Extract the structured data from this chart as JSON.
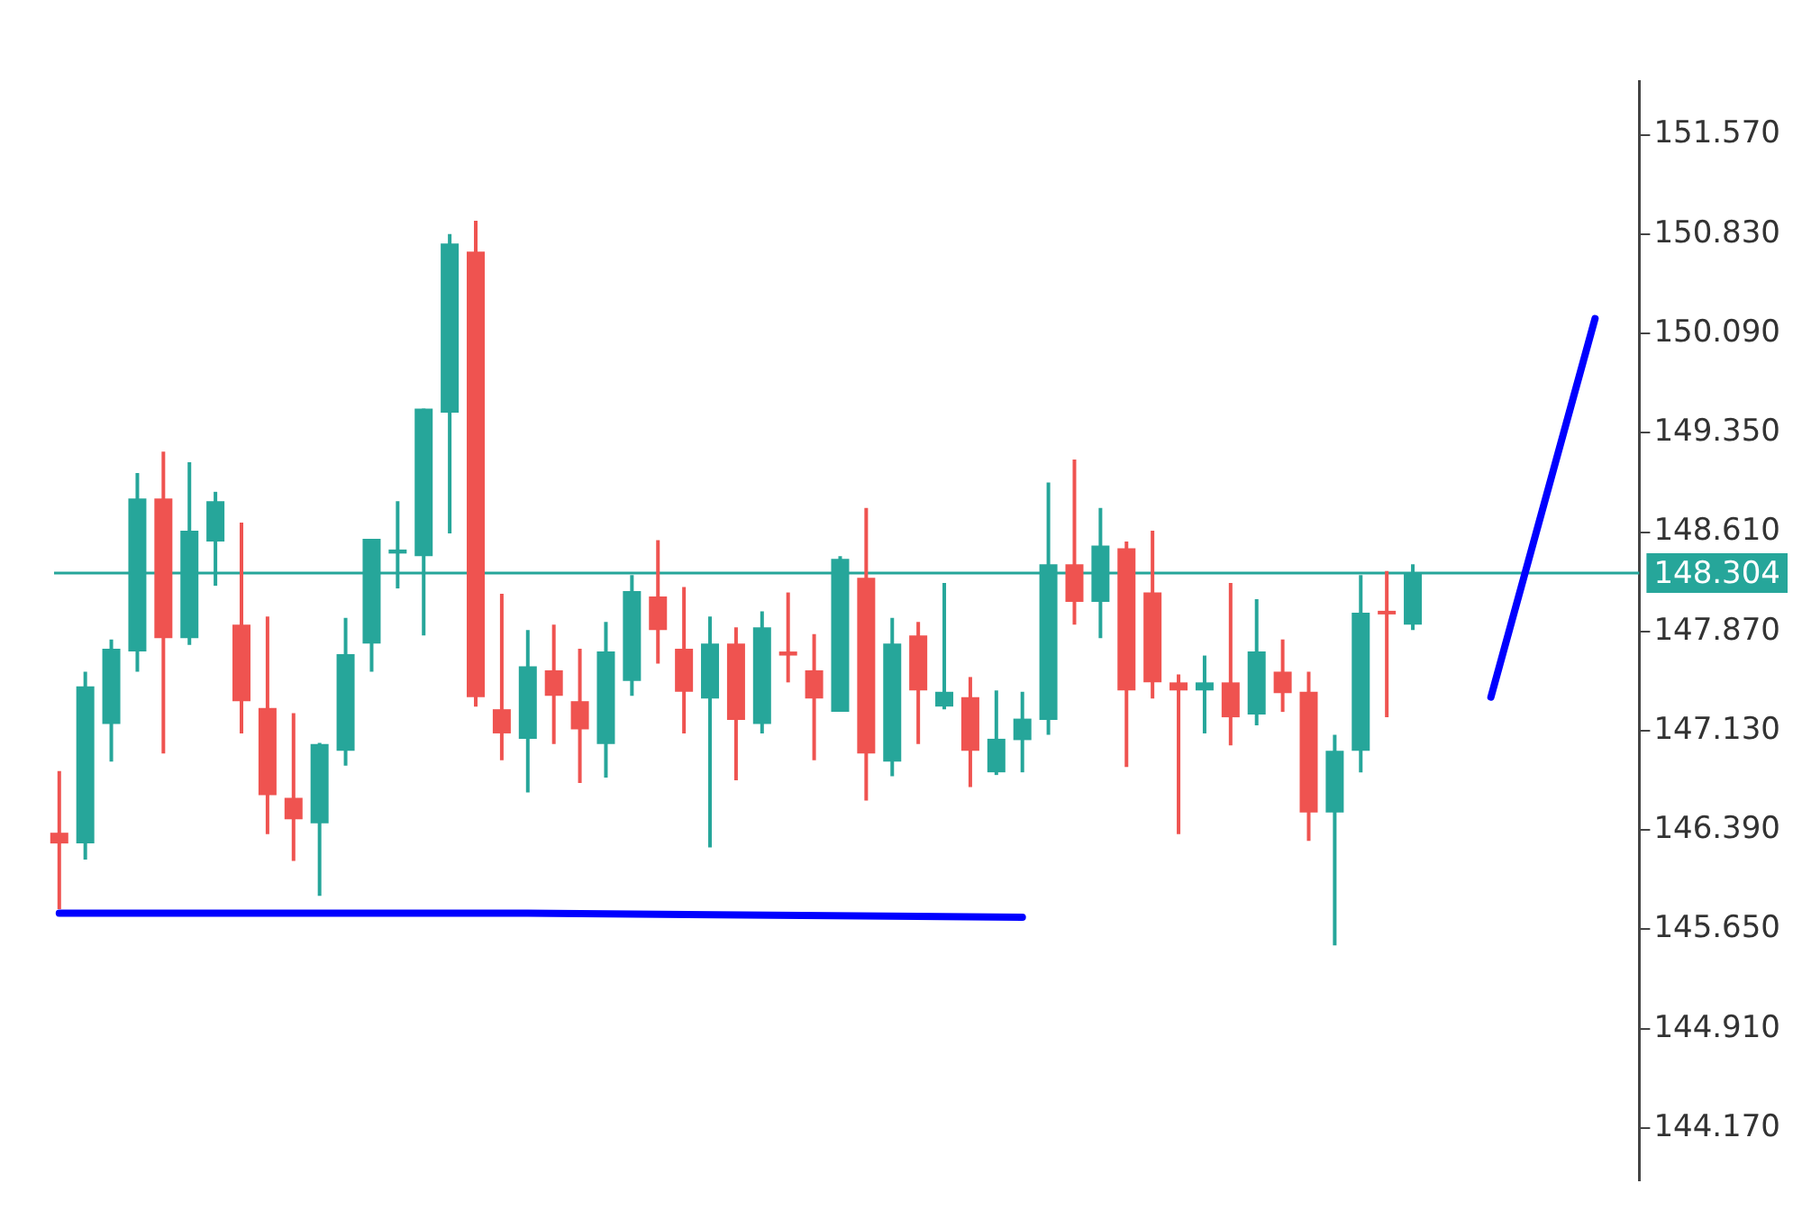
{
  "chart_data": {
    "type": "candlestick",
    "categories": [
      null,
      null,
      null,
      null,
      null,
      null,
      null,
      null,
      null,
      null,
      null,
      null,
      null,
      null,
      null,
      null,
      null,
      null,
      null,
      null,
      null,
      null,
      null,
      null,
      null,
      null,
      null,
      null,
      null,
      null,
      null,
      null,
      null,
      null,
      null,
      null,
      null,
      null,
      null,
      null,
      null,
      null,
      null,
      null,
      null,
      null,
      null,
      null,
      null,
      null,
      null,
      null,
      null,
      null,
      null,
      null,
      null,
      null,
      null,
      null
    ],
    "ohlc": [
      [
        146.37,
        146.83,
        145.8,
        146.29
      ],
      [
        146.29,
        147.57,
        146.17,
        147.46
      ],
      [
        147.18,
        147.81,
        146.9,
        147.74
      ],
      [
        147.72,
        149.05,
        147.57,
        148.86
      ],
      [
        148.86,
        149.21,
        146.96,
        147.82
      ],
      [
        147.82,
        149.13,
        147.77,
        148.62
      ],
      [
        148.54,
        148.91,
        148.21,
        148.84
      ],
      [
        147.92,
        148.68,
        147.11,
        147.35
      ],
      [
        147.3,
        147.98,
        146.36,
        146.65
      ],
      [
        146.63,
        147.26,
        146.16,
        146.47
      ],
      [
        146.44,
        147.04,
        145.9,
        147.03
      ],
      [
        146.98,
        147.97,
        146.87,
        147.7
      ],
      [
        147.78,
        148.56,
        147.57,
        148.56
      ],
      [
        148.45,
        148.84,
        148.19,
        148.48
      ],
      [
        148.43,
        149.53,
        147.84,
        149.53
      ],
      [
        149.5,
        150.83,
        148.6,
        150.76
      ],
      [
        150.7,
        150.93,
        147.31,
        147.38
      ],
      [
        147.29,
        148.15,
        146.91,
        147.11
      ],
      [
        147.07,
        147.88,
        146.67,
        147.61
      ],
      [
        147.58,
        147.92,
        147.03,
        147.39
      ],
      [
        147.35,
        147.74,
        146.74,
        147.14
      ],
      [
        147.03,
        147.94,
        146.78,
        147.72
      ],
      [
        147.5,
        148.29,
        147.39,
        148.17
      ],
      [
        148.13,
        148.55,
        147.63,
        147.88
      ],
      [
        147.74,
        148.2,
        147.11,
        147.42
      ],
      [
        147.37,
        147.98,
        146.26,
        147.78
      ],
      [
        147.78,
        147.9,
        146.76,
        147.21
      ],
      [
        147.18,
        148.02,
        147.11,
        147.9
      ],
      [
        147.72,
        148.16,
        147.49,
        147.69
      ],
      [
        147.58,
        147.85,
        146.91,
        147.37
      ],
      [
        147.27,
        148.43,
        147.27,
        148.41
      ],
      [
        148.27,
        148.79,
        146.61,
        146.96
      ],
      [
        146.9,
        147.97,
        146.79,
        147.78
      ],
      [
        147.84,
        147.94,
        147.03,
        147.43
      ],
      [
        147.31,
        148.23,
        147.29,
        147.42
      ],
      [
        147.38,
        147.53,
        146.71,
        146.98
      ],
      [
        146.82,
        147.43,
        146.8,
        147.07
      ],
      [
        147.06,
        147.42,
        146.82,
        147.22
      ],
      [
        147.21,
        148.98,
        147.1,
        148.37
      ],
      [
        148.37,
        149.15,
        147.92,
        148.09
      ],
      [
        148.09,
        148.79,
        147.82,
        148.51
      ],
      [
        148.49,
        148.54,
        146.86,
        147.43
      ],
      [
        148.16,
        148.62,
        147.37,
        147.49
      ],
      [
        147.49,
        147.55,
        146.36,
        147.43
      ],
      [
        147.43,
        147.69,
        147.11,
        147.49
      ],
      [
        147.49,
        148.23,
        147.02,
        147.23
      ],
      [
        147.25,
        148.11,
        147.17,
        147.72
      ],
      [
        147.57,
        147.81,
        147.27,
        147.41
      ],
      [
        147.42,
        147.57,
        146.31,
        146.52
      ],
      [
        146.52,
        147.1,
        145.53,
        146.98
      ],
      [
        146.98,
        148.29,
        146.82,
        148.01
      ],
      [
        148.02,
        148.32,
        147.23,
        148.0
      ],
      [
        147.92,
        148.37,
        147.88,
        148.3
      ],
      null,
      null,
      null,
      null,
      null,
      null,
      null
    ],
    "colors": [
      "#ef5350",
      "#26a69a",
      "#26a69a",
      "#26a69a",
      "#ef5350",
      "#26a69a",
      "#26a69a",
      "#ef5350",
      "#ef5350",
      "#ef5350",
      "#26a69a",
      "#26a69a",
      "#26a69a",
      "#26a69a",
      "#26a69a",
      "#26a69a",
      "#ef5350",
      "#ef5350",
      "#26a69a",
      "#ef5350",
      "#ef5350",
      "#26a69a",
      "#26a69a",
      "#ef5350",
      "#ef5350",
      "#26a69a",
      "#ef5350",
      "#26a69a",
      "#ef5350",
      "#ef5350",
      "#26a69a",
      "#ef5350",
      "#26a69a",
      "#ef5350",
      "#26a69a",
      "#ef5350",
      "#26a69a",
      "#26a69a",
      "#26a69a",
      "#ef5350",
      "#26a69a",
      "#ef5350",
      "#ef5350",
      "#ef5350",
      "#26a69a",
      "#ef5350",
      "#26a69a",
      "#ef5350",
      "#ef5350",
      "#26a69a",
      "#26a69a",
      "#ef5350",
      "#26a69a",
      null,
      null,
      null,
      null,
      null,
      null,
      null
    ],
    "series": [
      {
        "type": "line",
        "color": "#0000ff",
        "values": [
          145.77,
          null,
          null,
          null,
          null,
          null,
          null,
          null,
          null,
          null,
          null,
          null,
          null,
          null,
          null,
          null,
          null,
          null,
          145.77,
          null,
          null,
          null,
          null,
          null,
          null,
          null,
          null,
          null,
          null,
          null,
          null,
          null,
          null,
          null,
          null,
          null,
          null,
          145.74,
          null,
          null,
          null,
          null,
          null,
          null,
          null,
          null,
          null,
          null,
          null,
          null,
          null,
          null,
          null,
          null,
          null,
          null,
          null,
          null,
          null,
          null
        ]
      },
      {
        "type": "line",
        "color": "#0000ff",
        "values": [
          null,
          null,
          null,
          null,
          null,
          null,
          null,
          null,
          null,
          null,
          null,
          null,
          null,
          null,
          null,
          null,
          null,
          null,
          null,
          null,
          null,
          null,
          null,
          null,
          null,
          null,
          null,
          null,
          null,
          null,
          null,
          null,
          null,
          null,
          null,
          null,
          null,
          null,
          null,
          null,
          null,
          null,
          null,
          null,
          null,
          null,
          null,
          null,
          null,
          null,
          null,
          null,
          null,
          null,
          null,
          147.38,
          null,
          null,
          null,
          150.2
        ]
      }
    ],
    "ylim": [
      143.78,
      151.97
    ],
    "yticks": [
      {
        "value": 144.17,
        "label": "144.170"
      },
      {
        "value": 144.91,
        "label": "144.910"
      },
      {
        "value": 145.65,
        "label": "145.650"
      },
      {
        "value": 146.39,
        "label": "146.390"
      },
      {
        "value": 147.13,
        "label": "147.130"
      },
      {
        "value": 147.87,
        "label": "147.870"
      },
      {
        "value": 148.61,
        "label": "148.610"
      },
      {
        "value": 149.35,
        "label": "149.350"
      },
      {
        "value": 150.09,
        "label": "150.090"
      },
      {
        "value": 150.83,
        "label": "150.830"
      },
      {
        "value": 151.57,
        "label": "151.570"
      }
    ],
    "tick_labels": "y",
    "ref_lines": [
      {
        "axis": "y",
        "value": 148.304,
        "label": "148.304",
        "color": "#26a69a"
      }
    ],
    "grid": false,
    "legend": false,
    "marker": "none"
  }
}
